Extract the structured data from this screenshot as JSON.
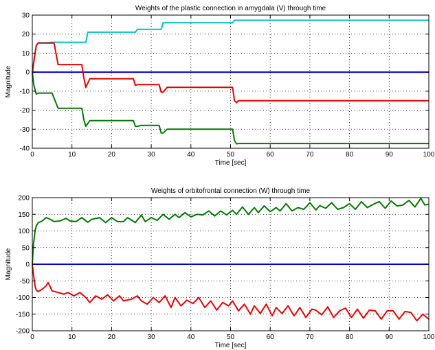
{
  "chart_data": [
    {
      "type": "line",
      "title": "Weights of the plastic connection in amygdala (V) through time",
      "xlabel": "Time [sec]",
      "ylabel": "Magnitude",
      "xlim": [
        0,
        100
      ],
      "ylim": [
        -40,
        30
      ],
      "xticks": [
        0,
        10,
        20,
        30,
        40,
        50,
        60,
        70,
        80,
        90,
        100
      ],
      "yticks": [
        -40,
        -30,
        -20,
        -10,
        0,
        10,
        20,
        30
      ],
      "grid": true,
      "series": [
        {
          "color": "#00c0c0",
          "x": [
            0,
            0.5,
            1,
            1.5,
            2,
            3,
            5,
            13.5,
            14,
            26,
            26.5,
            32.5,
            33,
            50.5,
            51,
            100
          ],
          "y": [
            -2,
            8,
            14,
            15.5,
            15.5,
            15.5,
            15.7,
            15.7,
            21,
            21,
            22.5,
            22.5,
            26,
            26,
            27.3,
            27.3
          ]
        },
        {
          "color": "#0000dd",
          "x": [
            0,
            100
          ],
          "y": [
            0,
            0
          ]
        },
        {
          "color": "#ee0000",
          "x": [
            0,
            1,
            1.5,
            5.5,
            6.5,
            12.5,
            13,
            13.5,
            14.5,
            25.5,
            26,
            26.5,
            27.5,
            32,
            32.5,
            33,
            34,
            50.5,
            51,
            51.5,
            52,
            100
          ],
          "y": [
            0,
            14,
            15.3,
            15.3,
            4,
            4,
            -3,
            -8,
            -3.5,
            -3.5,
            -7,
            -6.5,
            -6.5,
            -6.5,
            -10.5,
            -10.5,
            -8,
            -8,
            -15,
            -16,
            -15,
            -15
          ]
        },
        {
          "color": "#007a00",
          "x": [
            0,
            0.4,
            1,
            1.5,
            5,
            6.5,
            12.5,
            13,
            13.5,
            14.5,
            25.5,
            26,
            26.5,
            27.5,
            32,
            32.5,
            33,
            34,
            50.5,
            51,
            51.5,
            52,
            100
          ],
          "y": [
            0,
            -7,
            -11.5,
            -11,
            -11,
            -19,
            -19,
            -25,
            -28.5,
            -25.5,
            -25.5,
            -28.5,
            -28.5,
            -28,
            -28,
            -32,
            -32,
            -30,
            -30,
            -36,
            -37.7,
            -37.5,
            -37.5
          ]
        }
      ]
    },
    {
      "type": "line",
      "title": "Weights of orbitofrontal connection (W) through time",
      "xlabel": "Time [sec]",
      "ylabel": "Magnitude",
      "xlim": [
        0,
        100
      ],
      "ylim": [
        -200,
        200
      ],
      "xticks": [
        0,
        10,
        20,
        30,
        40,
        50,
        60,
        70,
        80,
        90,
        100
      ],
      "yticks": [
        -200,
        -150,
        -100,
        -50,
        0,
        50,
        100,
        150,
        200
      ],
      "grid": true,
      "series": [
        {
          "color": "#0000dd",
          "x": [
            0,
            100
          ],
          "y": [
            0,
            0
          ]
        },
        {
          "color": "#007a00",
          "x": [
            0,
            0.3,
            0.7,
            1,
            1.5,
            2.5,
            3.5,
            4.5,
            5.5,
            7,
            8.5,
            9.5,
            11,
            12.5,
            14,
            15,
            17,
            18.5,
            20,
            21.5,
            23,
            24,
            26,
            27.5,
            28.5,
            30,
            31.5,
            33,
            34.5,
            36,
            37,
            38.5,
            40,
            41.5,
            43,
            44.5,
            46,
            47.5,
            49,
            50.5,
            51.5,
            53,
            54.5,
            56,
            57,
            58.5,
            60,
            61.5,
            62.5,
            64,
            65.5,
            67,
            68.5,
            70,
            71.5,
            72.5,
            74,
            75.5,
            77,
            78.5,
            80,
            81.5,
            83,
            84.5,
            86,
            87.5,
            89,
            90.5,
            92,
            93.5,
            95,
            96.5,
            98,
            99,
            100
          ],
          "y": [
            0,
            60,
            100,
            115,
            125,
            130,
            140,
            135,
            128,
            130,
            138,
            130,
            128,
            140,
            126,
            135,
            140,
            125,
            140,
            128,
            128,
            140,
            125,
            148,
            128,
            140,
            132,
            150,
            135,
            150,
            140,
            155,
            142,
            150,
            148,
            160,
            145,
            160,
            148,
            162,
            150,
            172,
            150,
            170,
            155,
            175,
            158,
            170,
            160,
            182,
            160,
            170,
            165,
            185,
            163,
            176,
            168,
            185,
            165,
            170,
            182,
            165,
            188,
            170,
            180,
            188,
            168,
            190,
            175,
            178,
            192,
            172,
            198,
            178,
            180
          ]
        },
        {
          "color": "#ee0000",
          "x": [
            0,
            0.3,
            0.7,
            1,
            1.5,
            2.5,
            3.5,
            4,
            5,
            6.5,
            8,
            9,
            10.5,
            12,
            13.5,
            14.5,
            16,
            17.5,
            19,
            20.5,
            22,
            23,
            25,
            26.5,
            27.5,
            29,
            30.5,
            32,
            33.5,
            35,
            36,
            37.5,
            39,
            40.5,
            42,
            43.5,
            45,
            46.5,
            48,
            49.5,
            50.5,
            52,
            53.5,
            55,
            56,
            57.5,
            59,
            60.5,
            61.5,
            63,
            64.5,
            66,
            67.5,
            69,
            70.5,
            71.5,
            73,
            74.5,
            76,
            77.5,
            79,
            80.5,
            82,
            83.5,
            85,
            86.5,
            88,
            89.5,
            91,
            92.5,
            94,
            95.5,
            97,
            98.5,
            100
          ],
          "y": [
            0,
            -30,
            -65,
            -78,
            -82,
            -75,
            -65,
            -55,
            -80,
            -85,
            -90,
            -85,
            -95,
            -85,
            -100,
            -115,
            -95,
            -105,
            -92,
            -110,
            -95,
            -110,
            -105,
            -95,
            -110,
            -120,
            -100,
            -115,
            -95,
            -130,
            -100,
            -125,
            -108,
            -118,
            -100,
            -130,
            -110,
            -138,
            -115,
            -125,
            -110,
            -140,
            -120,
            -150,
            -125,
            -148,
            -120,
            -155,
            -130,
            -148,
            -125,
            -155,
            -130,
            -160,
            -135,
            -138,
            -152,
            -128,
            -160,
            -140,
            -132,
            -160,
            -135,
            -162,
            -138,
            -140,
            -165,
            -140,
            -140,
            -165,
            -142,
            -145,
            -170,
            -150,
            -165
          ]
        }
      ]
    }
  ]
}
